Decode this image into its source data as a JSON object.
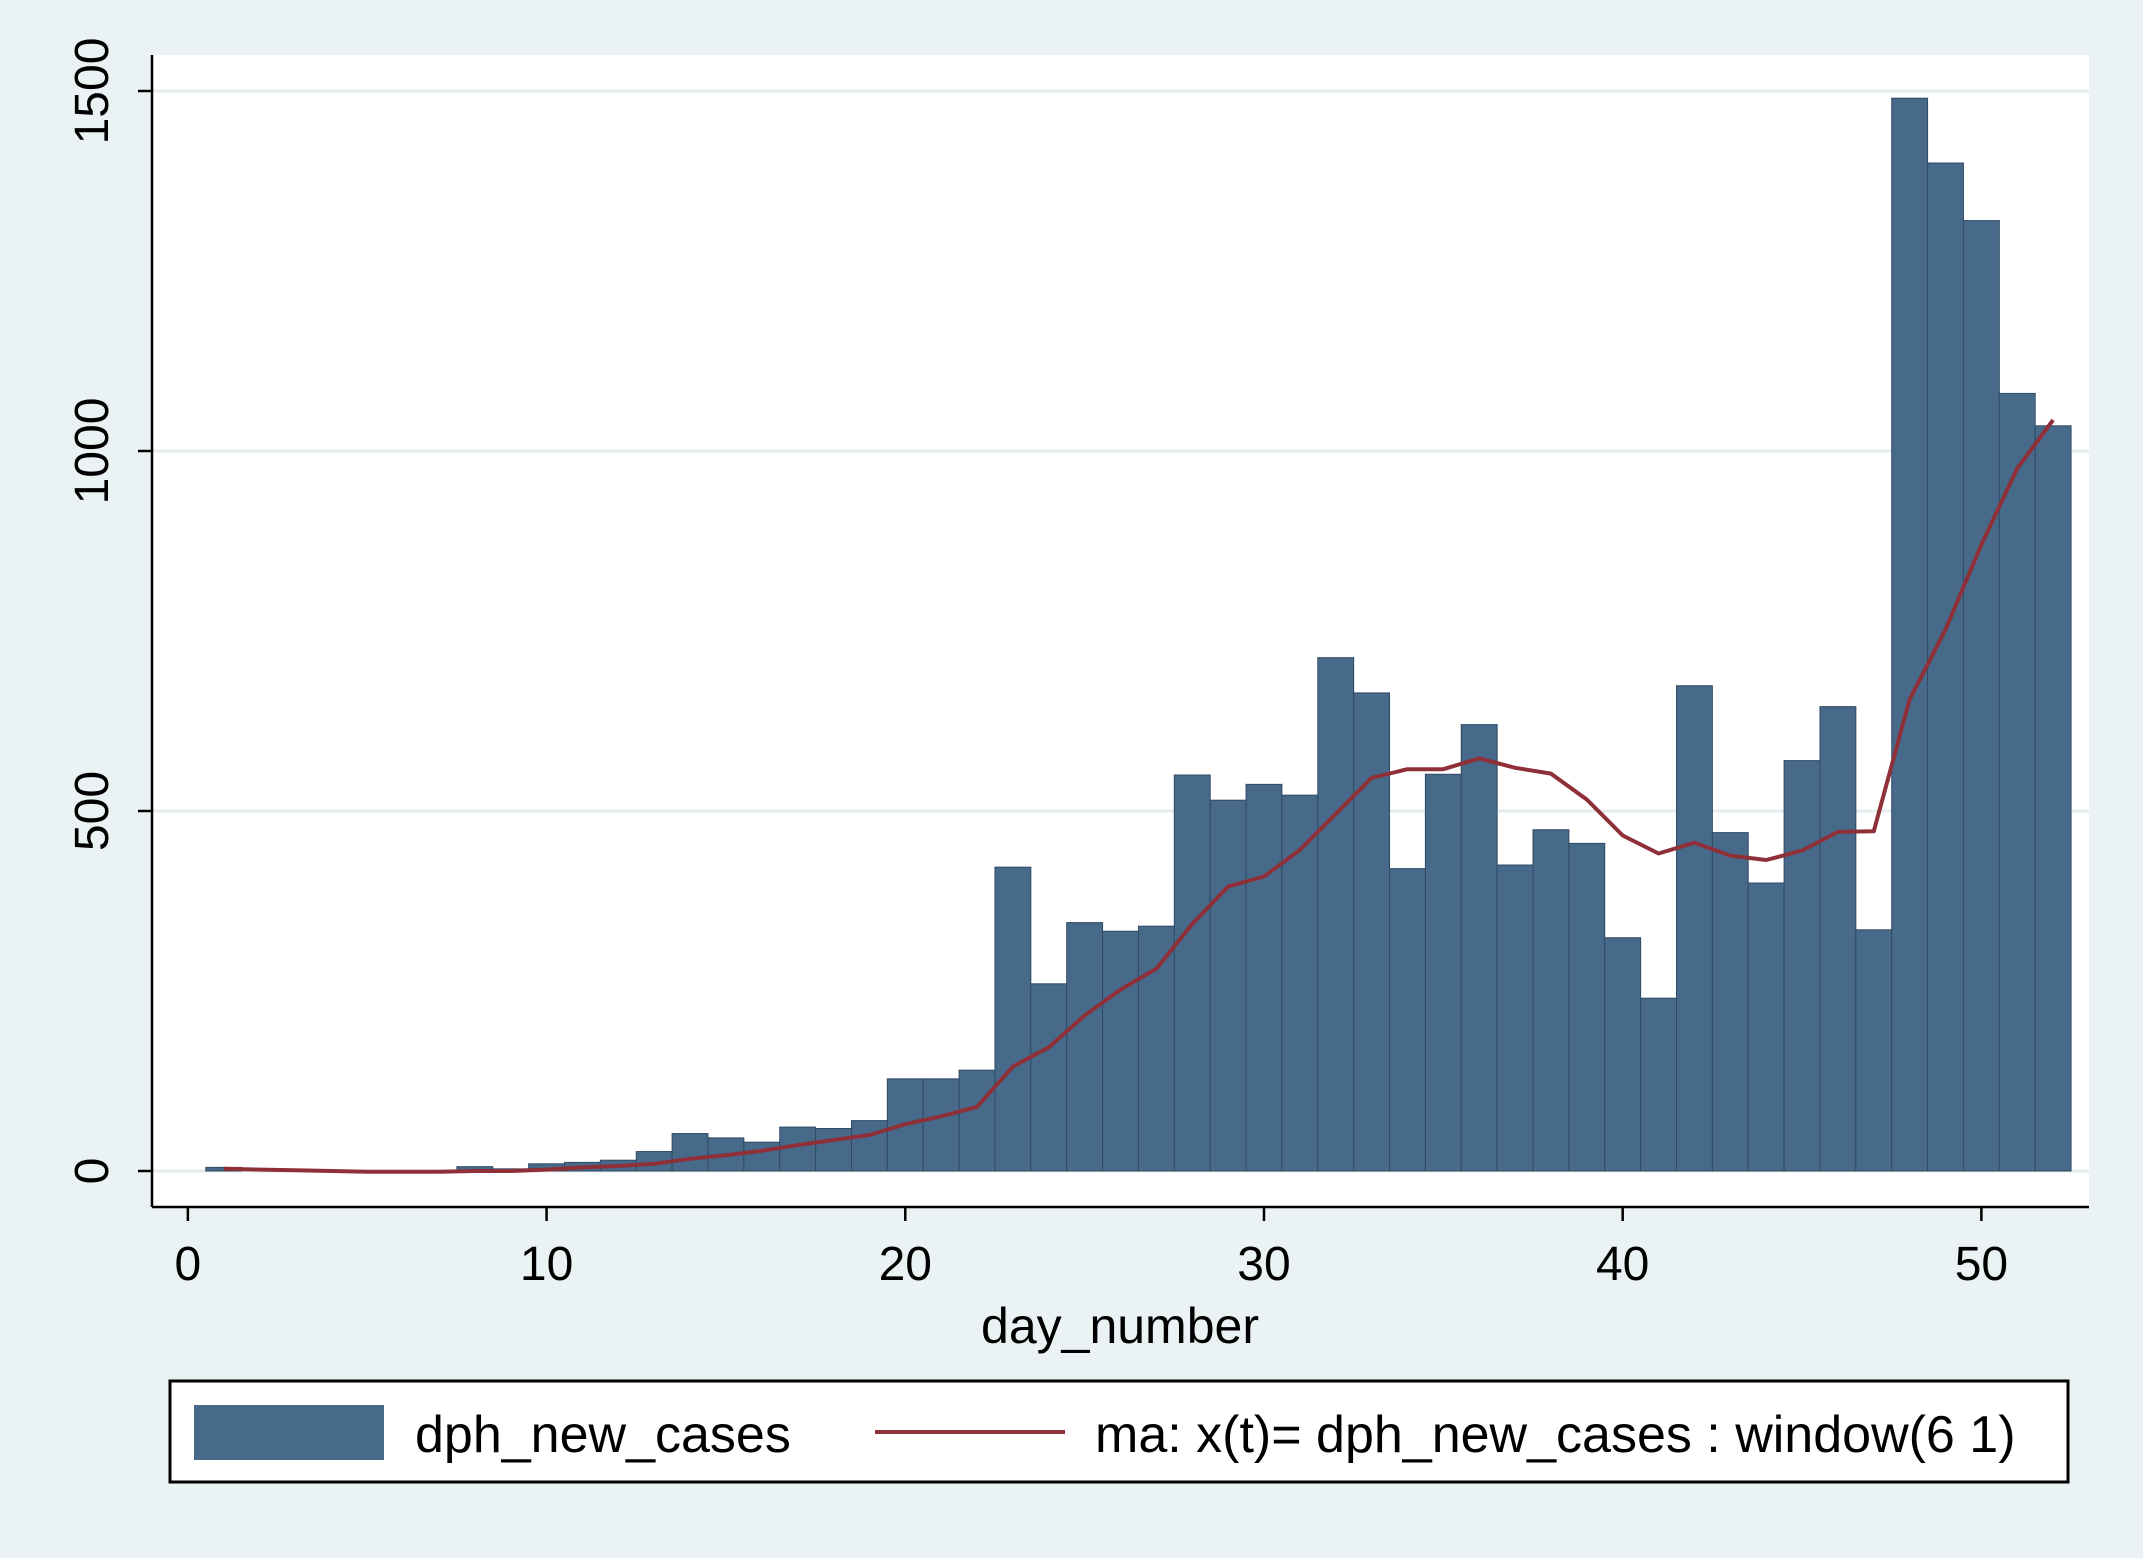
{
  "chart_data": {
    "type": "bar",
    "xlabel": "day_number",
    "ylabel": "",
    "xlim": [
      -1,
      53
    ],
    "ylim": [
      -50,
      1550
    ],
    "xticks": [
      "0",
      "10",
      "20",
      "30",
      "40",
      "50"
    ],
    "yticks": [
      "0",
      "500",
      "1000",
      "1500"
    ],
    "legend_position": "bottom",
    "colors": {
      "bars": "#476a8b",
      "line": "#8f3038",
      "background": "#eaf2f3",
      "plot": "#ffffff"
    },
    "series": [
      {
        "name": "dph_new_cases",
        "type": "bar",
        "x": [
          1,
          2,
          3,
          4,
          5,
          6,
          7,
          8,
          9,
          10,
          11,
          12,
          13,
          14,
          15,
          16,
          17,
          18,
          19,
          20,
          21,
          22,
          23,
          24,
          25,
          26,
          27,
          28,
          29,
          30,
          31,
          32,
          33,
          34,
          35,
          36,
          37,
          38,
          39,
          40,
          41,
          42,
          43,
          44,
          45,
          46,
          47,
          48,
          49,
          50,
          51,
          52
        ],
        "values": [
          5,
          0,
          0,
          0,
          0,
          0,
          0,
          6,
          3,
          10,
          12,
          15,
          27,
          52,
          46,
          40,
          61,
          59,
          70,
          128,
          128,
          140,
          422,
          260,
          345,
          333,
          340,
          550,
          515,
          537,
          522,
          713,
          664,
          420,
          551,
          620,
          425,
          474,
          455,
          324,
          240,
          674,
          470,
          400,
          570,
          645,
          335,
          1490,
          1400,
          1320,
          1080,
          1035
        ]
      },
      {
        "name": "ma: x(t)= dph_new_cases : window(6 1)",
        "type": "line",
        "x": [
          1,
          2,
          3,
          4,
          5,
          6,
          7,
          8,
          9,
          10,
          11,
          12,
          13,
          14,
          15,
          16,
          17,
          18,
          19,
          20,
          21,
          22,
          23,
          24,
          25,
          26,
          27,
          28,
          29,
          30,
          31,
          32,
          33,
          34,
          35,
          36,
          37,
          38,
          39,
          40,
          41,
          42,
          43,
          44,
          45,
          46,
          47,
          48,
          49,
          50,
          51,
          52
        ],
        "values": [
          3,
          2,
          1,
          0,
          -1,
          -1,
          -1,
          0,
          0,
          2,
          5,
          7,
          10,
          17,
          22,
          28,
          36,
          43,
          50,
          65,
          76,
          89,
          145,
          172,
          216,
          252,
          281,
          343,
          395,
          409,
          446,
          496,
          546,
          558,
          558,
          573,
          560,
          552,
          516,
          466,
          441,
          456,
          438,
          432,
          445,
          471,
          472,
          655,
          752,
          870,
          976,
          1043
        ]
      }
    ]
  }
}
